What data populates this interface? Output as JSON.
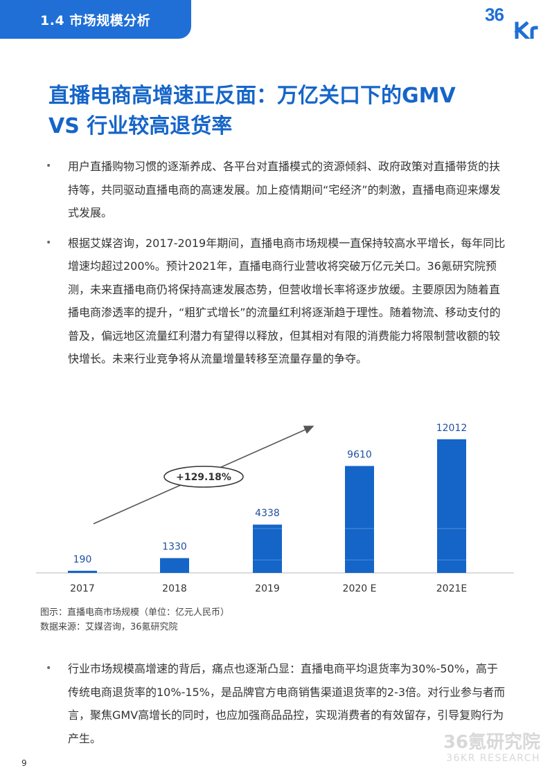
{
  "header": {
    "section_title": "1.4 市场规模分析",
    "logo_text": "36Kr"
  },
  "headline": {
    "line1": "直播电商高增速正反面：万亿关口下的GMV",
    "line2": "VS 行业较高退货率"
  },
  "bullets_top": [
    "用户直播购物习惯的逐渐养成、各平台对直播模式的资源倾斜、政府政策对直播带货的扶持等，共同驱动直播电商的高速发展。加上疫情期间“宅经济”的刺激，直播电商迎来爆发式发展。",
    "根据艾媒咨询，2017-2019年期间，直播电商市场规模一直保持较高水平增长，每年同比增速均超过200%。预计2021年，直播电商行业营收将突破万亿元关口。36氪研究院预测，未来直播电商仍将保持高速发展态势，但营收增长率将逐步放缓。主要原因为随着直播电商渗透率的提升，“粗犷式增长”的流量红利将逐渐趋于理性。随着物流、移动支付的普及，偏远地区流量红利潜力有望得以释放，但其相对有限的消费能力将限制营收额的较快增长。未来行业竞争将从流量增量转移至流量存量的争夺。"
  ],
  "chart_data": {
    "type": "bar",
    "categories": [
      "2017",
      "2018",
      "2019",
      "2020 E",
      "2021E"
    ],
    "values": [
      190,
      1330,
      4338,
      9610,
      12012
    ],
    "data_labels": [
      "190",
      "1330",
      "4338",
      "9610",
      "12012"
    ],
    "annotation": "+129.18%",
    "bar_color": "#1565c8",
    "ylim": [
      0,
      12500
    ],
    "grid": false,
    "title": "",
    "xlabel": "",
    "ylabel": ""
  },
  "captions": {
    "figure": "图示：直播电商市场规模（单位：亿元人民币）",
    "source": "数据来源：艾媒咨询，36氪研究院"
  },
  "bullets_bottom": [
    "行业市场规模高增速的背后，痛点也逐渐凸显：直播电商平均退货率为30%-50%，高于传统电商退货率的10%-15%，是品牌官方电商销售渠道退货率的2-3倍。对行业参与者而言，聚焦GMV高增长的同时，也应加强商品品控，实现消费者的有效留存，引导复购行为产生。"
  ],
  "footer": {
    "page_number": "9",
    "watermark_cn": "36氪研究院",
    "watermark_en": "36KR RESEARCH"
  }
}
